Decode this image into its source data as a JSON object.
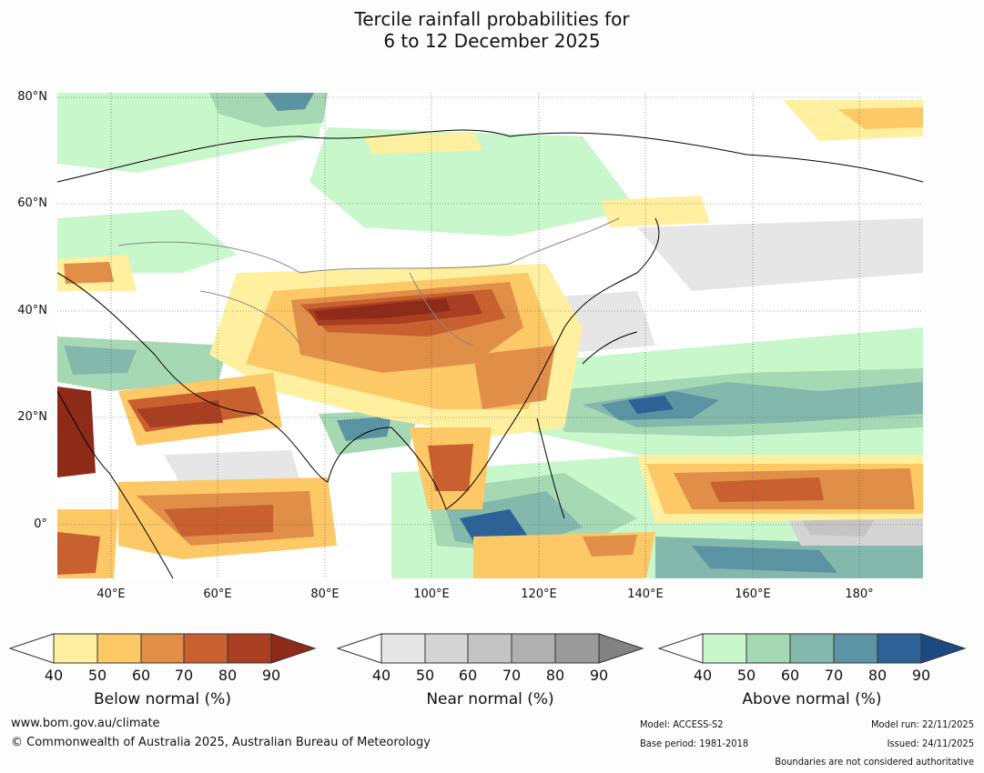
{
  "title": {
    "line1": "Tercile rainfall probabilities for",
    "line2": "6 to 12 December 2025"
  },
  "axes": {
    "lat_labels": [
      "80°N",
      "60°N",
      "40°N",
      "20°N",
      "0°"
    ],
    "lon_labels": [
      "40°E",
      "60°E",
      "80°E",
      "100°E",
      "120°E",
      "140°E",
      "160°E",
      "180°"
    ]
  },
  "colors": {
    "below": [
      "#fff0a0",
      "#fdc866",
      "#e08e48",
      "#c8602f",
      "#a83f22",
      "#8e2a18"
    ],
    "near": [
      "#e6e6e6",
      "#d4d4d4",
      "#c4c4c4",
      "#b0b0b0",
      "#9a9a9a",
      "#828282"
    ],
    "above": [
      "#c8f7cb",
      "#a6d8b4",
      "#84b8ac",
      "#5c93a2",
      "#2e6296",
      "#1a4a80"
    ]
  },
  "colorbars": [
    {
      "id": "below",
      "label": "Below normal (%)",
      "ticks": [
        "40",
        "50",
        "60",
        "70",
        "80",
        "90"
      ]
    },
    {
      "id": "near",
      "label": "Near normal (%)",
      "ticks": [
        "40",
        "50",
        "60",
        "70",
        "80",
        "90"
      ]
    },
    {
      "id": "above",
      "label": "Above normal (%)",
      "ticks": [
        "40",
        "50",
        "60",
        "70",
        "80",
        "90"
      ]
    }
  ],
  "footer": {
    "website": "www.bom.gov.au/climate",
    "copyright": "© Commonwealth of Australia 2025, Australian Bureau of Meteorology",
    "model": "Model: ACCESS-S2",
    "base_period": "Base period: 1981-2018",
    "model_run": "Model run: 22/11/2025",
    "issued": "Issued: 24/11/2025",
    "disclaimer": "Boundaries are not considered authoritative"
  }
}
